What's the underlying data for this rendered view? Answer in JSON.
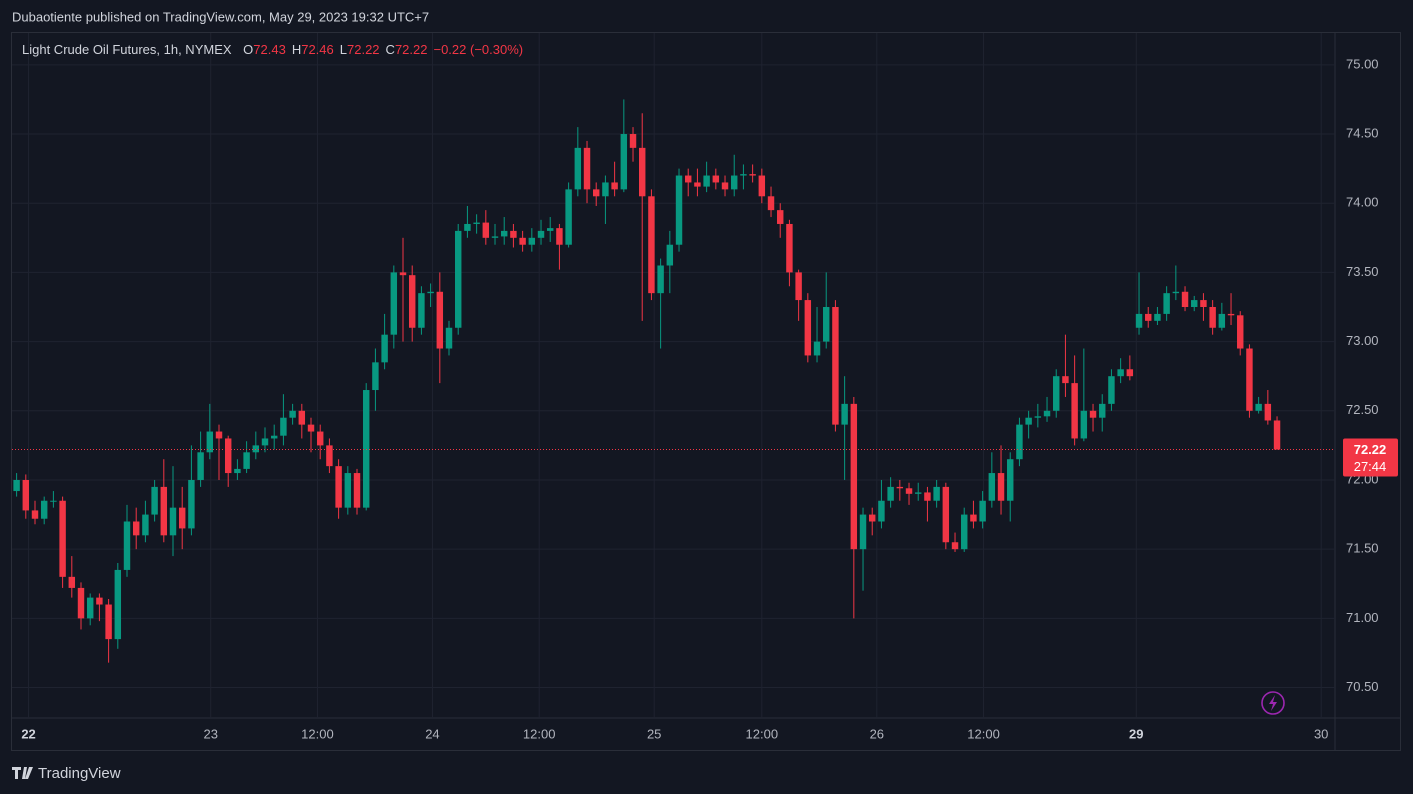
{
  "page": {
    "publisher_line": "Dubaotiente published on TradingView.com, May 29, 2023 19:32 UTC+7",
    "brand": "TradingView"
  },
  "chart_data": {
    "type": "candlestick",
    "symbol": "Light Crude Oil Futures, 1h, NYMEX",
    "ohlc_legend": [
      {
        "label": "O",
        "value": 72.43
      },
      {
        "label": "H",
        "value": 72.46
      },
      {
        "label": "L",
        "value": 72.22
      },
      {
        "label": "C",
        "value": 72.22
      }
    ],
    "change": "−0.22 (−0.30%)",
    "colors": {
      "up": "#089981",
      "down": "#f23645"
    },
    "grid": true,
    "open": [
      71.92,
      72.0,
      71.78,
      71.72,
      71.85,
      71.85,
      71.3,
      71.22,
      71.0,
      71.15,
      71.1,
      70.85,
      71.35,
      71.7,
      71.6,
      71.75,
      71.95,
      71.6,
      71.8,
      71.65,
      72.0,
      72.2,
      72.35,
      72.3,
      72.05,
      72.08,
      72.2,
      72.25,
      72.3,
      72.32,
      72.45,
      72.5,
      72.4,
      72.35,
      72.25,
      72.1,
      71.8,
      72.05,
      71.8,
      72.65,
      72.85,
      73.05,
      73.5,
      73.48,
      73.1,
      73.35,
      73.36,
      72.95,
      73.1,
      73.8,
      73.85,
      73.86,
      73.75,
      73.76,
      73.8,
      73.75,
      73.7,
      73.75,
      73.8,
      73.82,
      73.7,
      74.1,
      74.4,
      74.1,
      74.05,
      74.15,
      74.1,
      74.5,
      74.4,
      74.05,
      73.35,
      73.55,
      73.7,
      74.2,
      74.15,
      74.12,
      74.2,
      74.15,
      74.1,
      74.2,
      74.21,
      74.2,
      74.05,
      73.95,
      73.85,
      73.5,
      73.3,
      72.9,
      73.0,
      73.25,
      72.4,
      72.55,
      71.5,
      71.75,
      71.7,
      71.85,
      71.95,
      71.94,
      71.9,
      71.91,
      71.85,
      71.95,
      71.55,
      71.5,
      71.75,
      71.7,
      71.85,
      72.05,
      71.85,
      72.15,
      72.4,
      72.45,
      72.46,
      72.5,
      72.75,
      72.7,
      72.3,
      72.5,
      72.45,
      72.55,
      72.75,
      72.8,
      73.1,
      73.2,
      73.15,
      73.2,
      73.35,
      73.36,
      73.25,
      73.3,
      73.25,
      73.1,
      73.2,
      73.19,
      72.95,
      72.5,
      72.55,
      72.43
    ],
    "high": [
      72.05,
      72.04,
      71.85,
      71.88,
      71.92,
      71.88,
      71.45,
      71.26,
      71.18,
      71.18,
      71.14,
      71.4,
      71.82,
      71.8,
      71.85,
      72.0,
      72.15,
      72.1,
      71.95,
      72.25,
      72.35,
      72.55,
      72.4,
      72.32,
      72.15,
      72.28,
      72.35,
      72.38,
      72.4,
      72.62,
      72.55,
      72.55,
      72.45,
      72.4,
      72.3,
      72.15,
      72.1,
      72.08,
      72.7,
      72.95,
      73.2,
      73.55,
      73.75,
      73.55,
      73.4,
      73.42,
      73.5,
      73.15,
      73.85,
      73.98,
      73.92,
      73.95,
      73.85,
      73.9,
      73.85,
      73.8,
      73.82,
      73.88,
      73.9,
      73.85,
      74.15,
      74.55,
      74.45,
      74.15,
      74.2,
      74.3,
      74.75,
      74.55,
      74.65,
      74.1,
      73.6,
      73.8,
      74.25,
      74.25,
      74.25,
      74.3,
      74.25,
      74.2,
      74.35,
      74.28,
      74.28,
      74.25,
      74.12,
      74.0,
      73.88,
      73.52,
      73.35,
      73.25,
      73.5,
      73.3,
      72.75,
      72.6,
      71.8,
      71.8,
      72.0,
      72.02,
      72.0,
      71.98,
      71.98,
      71.95,
      72.0,
      71.98,
      71.62,
      71.8,
      71.85,
      71.92,
      72.2,
      72.25,
      72.2,
      72.45,
      72.5,
      72.55,
      72.6,
      72.8,
      73.05,
      72.9,
      72.95,
      72.55,
      72.62,
      72.8,
      72.88,
      72.9,
      73.5,
      73.25,
      73.25,
      73.4,
      73.55,
      73.4,
      73.33,
      73.35,
      73.3,
      73.28,
      73.35,
      73.22,
      72.98,
      72.6,
      72.65,
      72.46
    ],
    "low": [
      71.88,
      71.72,
      71.68,
      71.68,
      71.8,
      71.22,
      71.15,
      70.92,
      70.95,
      70.98,
      70.68,
      70.78,
      71.3,
      71.5,
      71.55,
      71.7,
      71.55,
      71.45,
      71.5,
      71.6,
      71.95,
      72.15,
      72.0,
      71.95,
      72.0,
      72.05,
      72.15,
      72.2,
      72.22,
      72.25,
      72.4,
      72.3,
      72.2,
      72.15,
      72.05,
      71.72,
      71.75,
      71.75,
      71.78,
      72.5,
      72.8,
      72.95,
      73.0,
      73.0,
      73.05,
      73.25,
      72.7,
      72.9,
      73.05,
      73.75,
      73.78,
      73.7,
      73.7,
      73.7,
      73.68,
      73.65,
      73.65,
      73.7,
      73.72,
      73.52,
      73.68,
      74.05,
      74.0,
      73.98,
      73.85,
      74.05,
      74.08,
      74.3,
      73.15,
      73.3,
      72.95,
      73.35,
      73.65,
      74.05,
      74.05,
      74.08,
      74.1,
      74.05,
      74.05,
      74.1,
      74.15,
      74.0,
      73.9,
      73.75,
      73.4,
      73.15,
      72.85,
      72.85,
      72.95,
      72.35,
      72.0,
      71.0,
      71.2,
      71.6,
      71.65,
      71.8,
      71.85,
      71.82,
      71.85,
      71.7,
      71.8,
      71.5,
      71.48,
      71.48,
      71.65,
      71.65,
      71.8,
      71.75,
      71.7,
      72.1,
      72.3,
      72.38,
      72.42,
      72.45,
      72.6,
      72.25,
      72.28,
      72.35,
      72.35,
      72.5,
      72.7,
      72.72,
      73.05,
      73.1,
      73.12,
      73.15,
      73.3,
      73.22,
      73.22,
      73.15,
      73.05,
      73.08,
      73.12,
      72.9,
      72.45,
      72.48,
      72.4,
      72.22
    ],
    "close": [
      72.0,
      71.78,
      71.72,
      71.85,
      71.85,
      71.3,
      71.22,
      71.0,
      71.15,
      71.1,
      70.85,
      71.35,
      71.7,
      71.6,
      71.75,
      71.95,
      71.6,
      71.8,
      71.65,
      72.0,
      72.2,
      72.35,
      72.3,
      72.05,
      72.08,
      72.2,
      72.25,
      72.3,
      72.32,
      72.45,
      72.5,
      72.4,
      72.35,
      72.25,
      72.1,
      71.8,
      72.05,
      71.8,
      72.65,
      72.85,
      73.05,
      73.5,
      73.48,
      73.1,
      73.35,
      73.36,
      72.95,
      73.1,
      73.8,
      73.85,
      73.86,
      73.75,
      73.76,
      73.8,
      73.75,
      73.7,
      73.75,
      73.8,
      73.82,
      73.7,
      74.1,
      74.4,
      74.1,
      74.05,
      74.15,
      74.1,
      74.5,
      74.4,
      74.05,
      73.35,
      73.55,
      73.7,
      74.2,
      74.15,
      74.12,
      74.2,
      74.15,
      74.1,
      74.2,
      74.21,
      74.2,
      74.05,
      73.95,
      73.85,
      73.5,
      73.3,
      72.9,
      73.0,
      73.25,
      72.4,
      72.55,
      71.5,
      71.75,
      71.7,
      71.85,
      71.95,
      71.94,
      71.9,
      71.91,
      71.85,
      71.95,
      71.55,
      71.5,
      71.75,
      71.7,
      71.85,
      72.05,
      71.85,
      72.15,
      72.4,
      72.45,
      72.46,
      72.5,
      72.75,
      72.7,
      72.3,
      72.5,
      72.45,
      72.55,
      72.75,
      72.8,
      72.75,
      73.2,
      73.15,
      73.2,
      73.35,
      73.36,
      73.25,
      73.3,
      73.25,
      73.1,
      73.2,
      73.19,
      72.95,
      72.5,
      72.55,
      72.43,
      72.22
    ],
    "xlim": [
      -0.5,
      143.3
    ],
    "xticks": [
      {
        "value": 1.3,
        "label": "22"
      },
      {
        "value": 21.1,
        "label": "23"
      },
      {
        "value": 32.7,
        "label": "12:00"
      },
      {
        "value": 45.2,
        "label": "24"
      },
      {
        "value": 56.8,
        "label": "12:00"
      },
      {
        "value": 69.3,
        "label": "25"
      },
      {
        "value": 81.0,
        "label": "12:00"
      },
      {
        "value": 93.5,
        "label": "26"
      },
      {
        "value": 105.1,
        "label": "12:00"
      },
      {
        "value": 121.7,
        "label": "29"
      },
      {
        "value": 141.8,
        "label": "30"
      }
    ],
    "ylim": [
      70.28,
      75.23
    ],
    "yticks": [
      {
        "value": 70.5,
        "label": "70.50"
      },
      {
        "value": 71,
        "label": "71.00"
      },
      {
        "value": 71.5,
        "label": "71.50"
      },
      {
        "value": 72,
        "label": "72.00"
      },
      {
        "value": 72.5,
        "label": "72.50"
      },
      {
        "value": 73,
        "label": "73.00"
      },
      {
        "value": 73.5,
        "label": "73.50"
      },
      {
        "value": 74,
        "label": "74.00"
      },
      {
        "value": 74.5,
        "label": "74.50"
      },
      {
        "value": 75,
        "label": "75.00"
      }
    ],
    "last_price": {
      "value": 72.22,
      "countdown": "27:44"
    }
  }
}
